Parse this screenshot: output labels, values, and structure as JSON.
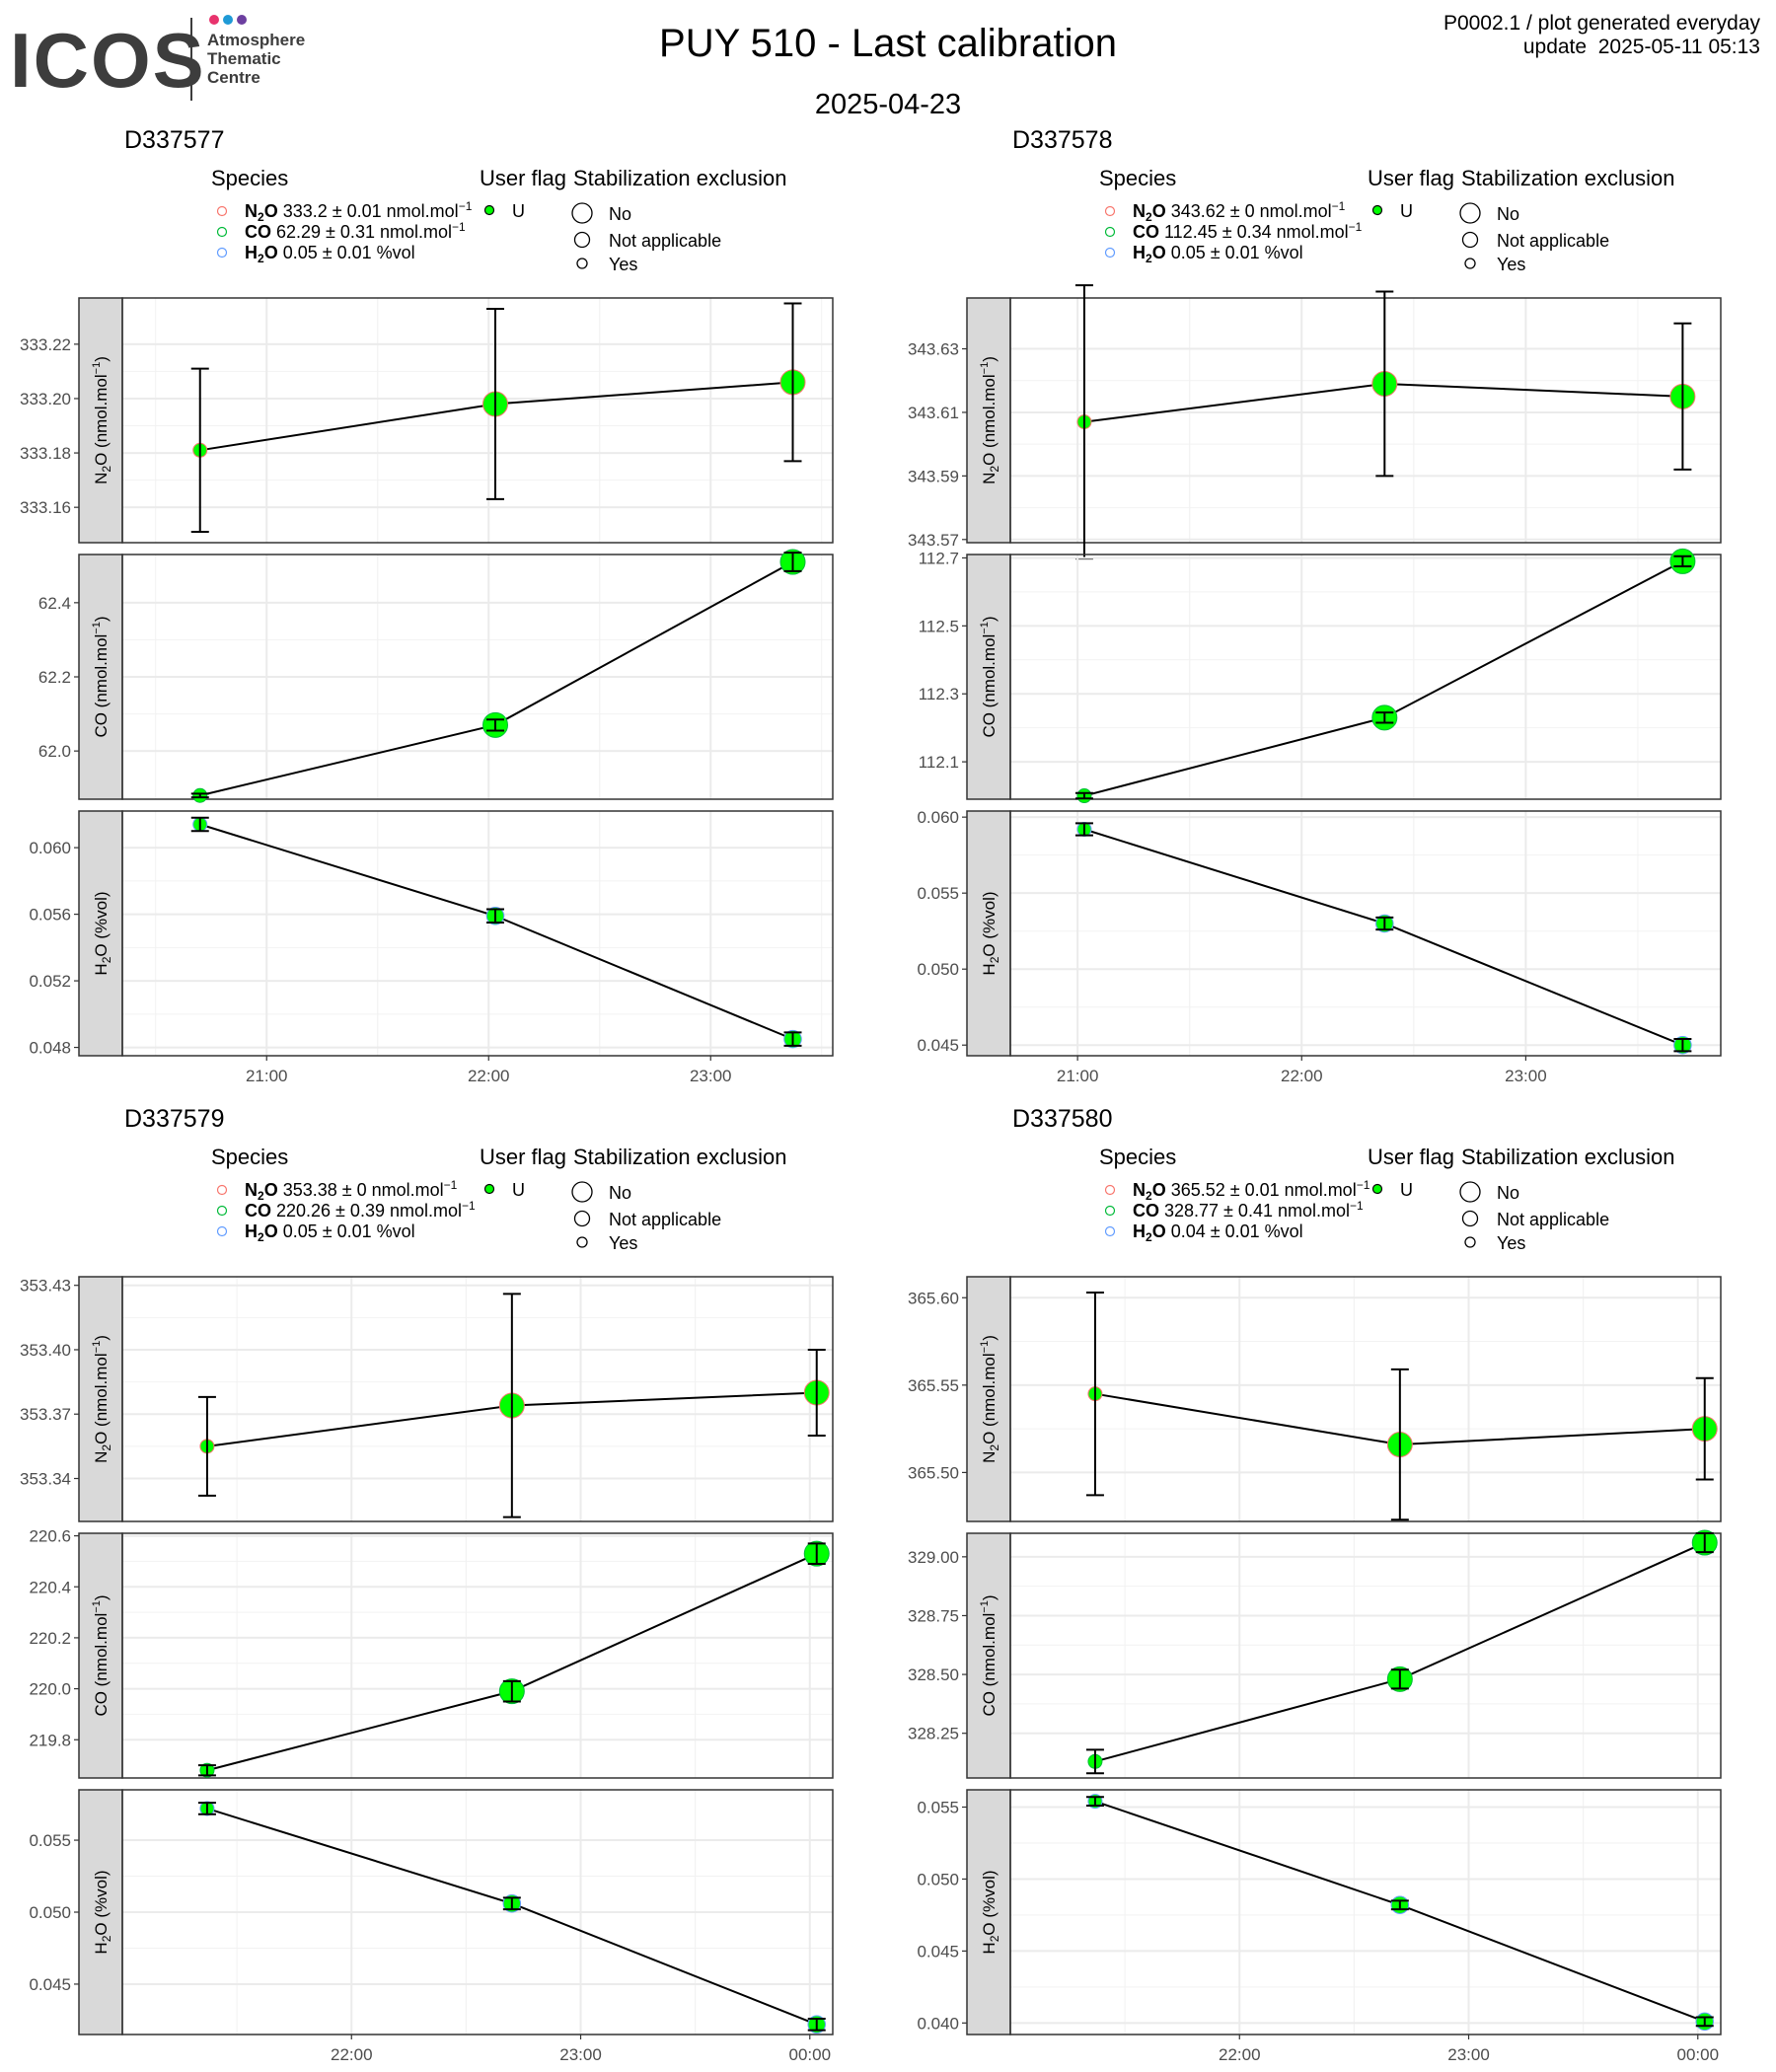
{
  "header": {
    "logo_name": "ICOS",
    "logo_line1": "Atmosphere",
    "logo_line2": "Thematic",
    "logo_line3": "Centre",
    "logo_dot_colors": [
      "#e8336d",
      "#1f9ad6",
      "#6c3fa0"
    ],
    "title": "PUY 510 - Last calibration",
    "date": "2025-04-23",
    "meta_line1": "P0002.1 / plot generated everyday",
    "meta_line2": "update  2025-05-11 05:13"
  },
  "legend_titles": {
    "species": "Species",
    "user_flag": "User flag",
    "stabilization": "Stabilization exclusion",
    "flag_u": "U",
    "stab_no": "No",
    "stab_na": "Not applicable",
    "stab_yes": "Yes"
  },
  "colors": {
    "n2o": "#f8766d",
    "co": "#00ba38",
    "h2o": "#619cff",
    "point_fill": "#00ff00",
    "strip_fill": "#d9d9d9",
    "grid": "#ebebeb"
  },
  "chart_data": [
    {
      "type": "scatter",
      "name": "D337577",
      "legend": [
        {
          "species": "N2O",
          "text": "333.2 ± 0.01 nmol.mol-1"
        },
        {
          "species": "CO",
          "text": "62.29 ± 0.31 nmol.mol-1"
        },
        {
          "species": "H2O",
          "text": "0.05 ± 0.01 %vol"
        }
      ],
      "x_ticks": [
        "21:00",
        "22:00",
        "23:00"
      ],
      "x_tick_values": [
        21.0,
        22.0,
        23.0
      ],
      "xlim": [
        20.35,
        23.55
      ],
      "x": [
        20.7,
        22.03,
        23.37
      ],
      "panels": [
        {
          "ylabel": "N2O (nmol.mol-1)",
          "ylim": [
            333.147,
            333.237
          ],
          "ticks": [
            333.16,
            333.18,
            333.2,
            333.22
          ],
          "tick_labels": [
            "333.16",
            "333.18",
            "333.20",
            "333.22"
          ],
          "y": [
            333.181,
            333.198,
            333.206
          ],
          "err": [
            0.03,
            0.035,
            0.029
          ]
        },
        {
          "ylabel": "CO (nmol.mol-1)",
          "ylim": [
            61.87,
            62.53
          ],
          "ticks": [
            62.0,
            62.2,
            62.4
          ],
          "tick_labels": [
            "62.0",
            "62.2",
            "62.4"
          ],
          "y": [
            61.88,
            62.07,
            62.51
          ],
          "err": [
            0.005,
            0.015,
            0.025
          ]
        },
        {
          "ylabel": "H2O (%vol)",
          "ylim": [
            0.0475,
            0.0622
          ],
          "ticks": [
            0.048,
            0.052,
            0.056,
            0.06
          ],
          "tick_labels": [
            "0.048",
            "0.052",
            "0.056",
            "0.060"
          ],
          "y": [
            0.0614,
            0.0559,
            0.0485
          ],
          "err": [
            0.0004,
            0.0004,
            0.0004
          ]
        }
      ]
    },
    {
      "type": "scatter",
      "name": "D337578",
      "legend": [
        {
          "species": "N2O",
          "text": "343.62 ± 0 nmol.mol-1"
        },
        {
          "species": "CO",
          "text": "112.45 ± 0.34 nmol.mol-1"
        },
        {
          "species": "H2O",
          "text": "0.05 ± 0.01 %vol"
        }
      ],
      "x_ticks": [
        "21:00",
        "22:00",
        "23:00"
      ],
      "x_tick_values": [
        21.0,
        22.0,
        23.0
      ],
      "xlim": [
        20.7,
        23.87
      ],
      "x": [
        21.03,
        22.37,
        23.7
      ],
      "panels": [
        {
          "ylabel": "N2O (nmol.mol-1)",
          "ylim": [
            343.569,
            343.646
          ],
          "ticks": [
            343.57,
            343.59,
            343.61,
            343.63
          ],
          "tick_labels": [
            "343.57",
            "343.59",
            "343.61",
            "343.63"
          ],
          "y": [
            343.607,
            343.619,
            343.615
          ],
          "err": [
            0.043,
            0.029,
            0.023
          ]
        },
        {
          "ylabel": "CO (nmol.mol-1)",
          "ylim": [
            111.99,
            112.71
          ],
          "ticks": [
            112.1,
            112.3,
            112.5,
            112.7
          ],
          "tick_labels": [
            "112.1",
            "112.3",
            "112.5",
            "112.7"
          ],
          "y": [
            112.0,
            112.23,
            112.69
          ],
          "err": [
            0.008,
            0.015,
            0.015
          ]
        },
        {
          "ylabel": "H2O (%vol)",
          "ylim": [
            0.0443,
            0.0604
          ],
          "ticks": [
            0.045,
            0.05,
            0.055,
            0.06
          ],
          "tick_labels": [
            "0.045",
            "0.050",
            "0.055",
            "0.060"
          ],
          "y": [
            0.0592,
            0.053,
            0.045
          ],
          "err": [
            0.0004,
            0.0004,
            0.0004
          ]
        }
      ]
    },
    {
      "type": "scatter",
      "name": "D337579",
      "legend": [
        {
          "species": "N2O",
          "text": "353.38 ± 0 nmol.mol-1"
        },
        {
          "species": "CO",
          "text": "220.26 ± 0.39 nmol.mol-1"
        },
        {
          "species": "H2O",
          "text": "0.05 ± 0.01 %vol"
        }
      ],
      "x_ticks": [
        "22:00",
        "23:00",
        "00:00"
      ],
      "x_tick_values": [
        22.0,
        23.0,
        24.0
      ],
      "xlim": [
        21.0,
        24.1
      ],
      "x": [
        21.37,
        22.7,
        24.03
      ],
      "panels": [
        {
          "ylabel": "N2O (nmol.mol-1)",
          "ylim": [
            353.32,
            353.434
          ],
          "ticks": [
            353.34,
            353.37,
            353.4,
            353.43
          ],
          "tick_labels": [
            "353.34",
            "353.37",
            "353.40",
            "353.43"
          ],
          "y": [
            353.355,
            353.374,
            353.38
          ],
          "err": [
            0.023,
            0.052,
            0.02
          ]
        },
        {
          "ylabel": "CO (nmol.mol-1)",
          "ylim": [
            219.65,
            220.61
          ],
          "ticks": [
            219.8,
            220.0,
            220.2,
            220.4,
            220.6
          ],
          "tick_labels": [
            "219.8",
            "220.0",
            "220.2",
            "220.4",
            "220.6"
          ],
          "y": [
            219.68,
            219.99,
            220.53
          ],
          "err": [
            0.02,
            0.04,
            0.04
          ]
        },
        {
          "ylabel": "H2O (%vol)",
          "ylim": [
            0.0415,
            0.0585
          ],
          "ticks": [
            0.045,
            0.05,
            0.055
          ],
          "tick_labels": [
            "0.045",
            "0.050",
            "0.055"
          ],
          "y": [
            0.0572,
            0.0506,
            0.0422
          ],
          "err": [
            0.0004,
            0.0004,
            0.0004
          ]
        }
      ]
    },
    {
      "type": "scatter",
      "name": "D337580",
      "legend": [
        {
          "species": "N2O",
          "text": "365.52 ± 0.01 nmol.mol-1"
        },
        {
          "species": "CO",
          "text": "328.77 ± 0.41 nmol.mol-1"
        },
        {
          "species": "H2O",
          "text": "0.04 ± 0.01 %vol"
        }
      ],
      "x_ticks": [
        "22:00",
        "23:00",
        "00:00"
      ],
      "x_tick_values": [
        22.0,
        23.0,
        24.0
      ],
      "xlim": [
        21.0,
        24.1
      ],
      "x": [
        21.37,
        22.7,
        24.03
      ],
      "panels": [
        {
          "ylabel": "N2O (nmol.mol-1)",
          "ylim": [
            365.472,
            365.612
          ],
          "ticks": [
            365.5,
            365.55,
            365.6
          ],
          "tick_labels": [
            "365.50",
            "365.55",
            "365.60"
          ],
          "y": [
            365.545,
            365.516,
            365.525
          ],
          "err": [
            0.058,
            0.043,
            0.029
          ]
        },
        {
          "ylabel": "CO (nmol.mol-1)",
          "ylim": [
            328.06,
            329.1
          ],
          "ticks": [
            328.25,
            328.5,
            328.75,
            329.0
          ],
          "tick_labels": [
            "328.25",
            "328.50",
            "328.75",
            "329.00"
          ],
          "y": [
            328.13,
            328.48,
            329.06
          ],
          "err": [
            0.05,
            0.04,
            0.04
          ]
        },
        {
          "ylabel": "H2O (%vol)",
          "ylim": [
            0.0392,
            0.0562
          ],
          "ticks": [
            0.04,
            0.045,
            0.05,
            0.055
          ],
          "tick_labels": [
            "0.040",
            "0.045",
            "0.050",
            "0.055"
          ],
          "y": [
            0.0554,
            0.0482,
            0.0401
          ],
          "err": [
            0.0003,
            0.0003,
            0.0003
          ]
        }
      ]
    }
  ]
}
